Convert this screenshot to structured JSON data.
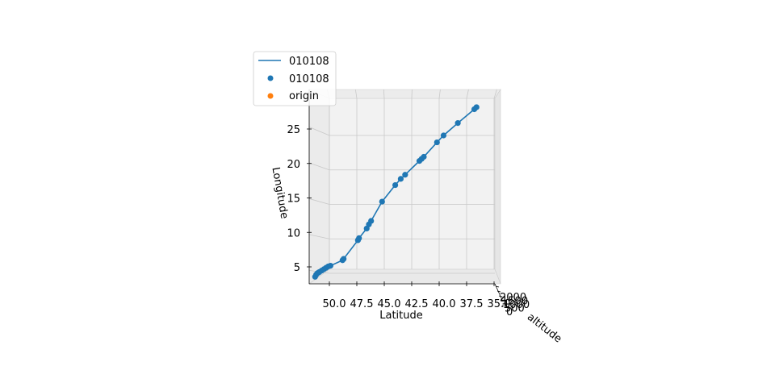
{
  "chart_data": {
    "type": "line",
    "projection": "3d",
    "x_axis": {
      "label": "Latitude",
      "ticks": [
        50.0,
        47.5,
        45.0,
        42.5,
        40.0,
        37.5,
        35.0
      ],
      "tick_labels": [
        "50.0",
        "47.5",
        "45.0",
        "42.5",
        "40.0",
        "37.5",
        "35.0"
      ],
      "range": [
        51.0,
        33.5
      ]
    },
    "y_axis": {
      "label": "Longitude",
      "ticks": [
        5,
        10,
        15,
        20,
        25
      ],
      "tick_labels": [
        "5",
        "10",
        "15",
        "20",
        "25"
      ],
      "range": [
        3,
        29
      ]
    },
    "z_axis": {
      "label": "altitude",
      "tick_labels": [
        "2000",
        "1500",
        "1000",
        "500",
        "0"
      ]
    },
    "grid": true,
    "legend": {
      "position": "upper-left",
      "entries": [
        {
          "label": "010108",
          "marker": "line",
          "color": "#1f77b4"
        },
        {
          "label": "010108",
          "marker": "dot",
          "color": "#1f77b4"
        },
        {
          "label": "origin",
          "marker": "dot",
          "color": "#ff7f0e"
        }
      ]
    },
    "series": [
      {
        "name": "010108",
        "kind": "line+scatter",
        "color": "#1f77b4",
        "points": [
          [
            51.3,
            4.5
          ],
          [
            51.2,
            4.8
          ],
          [
            51.1,
            5.0
          ],
          [
            51.0,
            5.1
          ],
          [
            50.9,
            5.2
          ],
          [
            50.7,
            5.4
          ],
          [
            50.5,
            5.6
          ],
          [
            50.3,
            5.8
          ],
          [
            50.1,
            6.0
          ],
          [
            49.9,
            6.1
          ],
          [
            48.8,
            6.9
          ],
          [
            48.7,
            7.1
          ],
          [
            47.4,
            9.8
          ],
          [
            47.3,
            10.1
          ],
          [
            46.6,
            11.5
          ],
          [
            46.4,
            12.1
          ],
          [
            46.2,
            12.6
          ],
          [
            45.2,
            15.4
          ],
          [
            44.0,
            17.8
          ],
          [
            43.5,
            18.7
          ],
          [
            43.1,
            19.3
          ],
          [
            41.8,
            21.3
          ],
          [
            41.6,
            21.6
          ],
          [
            41.4,
            21.9
          ],
          [
            40.2,
            24.0
          ],
          [
            39.6,
            25.0
          ],
          [
            38.3,
            26.8
          ],
          [
            36.8,
            28.8
          ],
          [
            36.6,
            29.1
          ]
        ]
      }
    ],
    "origin": []
  }
}
